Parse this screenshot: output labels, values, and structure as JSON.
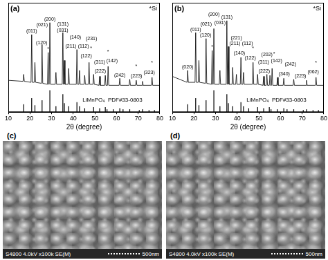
{
  "chart_data": [
    {
      "type": "line",
      "panel": "(a)",
      "xlabel": "2θ (degree)",
      "xlim": [
        10,
        80
      ],
      "xticks": [
        10,
        20,
        30,
        40,
        50,
        60,
        70,
        80
      ],
      "ylim": [
        0,
        110
      ],
      "yticks": [],
      "tick_labels": "x",
      "grid": false,
      "color": "#000000",
      "x": [
        10,
        16.8,
        17.1,
        17.4,
        20.5,
        20.8,
        21.1,
        22.0,
        22.3,
        22.6,
        25.3,
        25.6,
        25.9,
        28.1,
        28.4,
        28.7,
        28.9,
        29.2,
        29.5,
        31.7,
        32.0,
        32.3,
        34.9,
        35.2,
        35.5,
        35.6,
        35.9,
        36.2,
        37.6,
        37.9,
        38.2,
        41.4,
        41.7,
        42.0,
        42.6,
        42.9,
        43.2,
        45.0,
        45.3,
        45.6,
        47.0,
        47.3,
        47.6,
        49.1,
        49.4,
        49.7,
        51.9,
        52.2,
        52.5,
        54.5,
        54.8,
        55.1,
        55.8,
        56.1,
        56.4,
        61.2,
        61.5,
        61.8,
        65.8,
        66.1,
        66.4,
        68.8,
        69.1,
        69.4,
        71.7,
        72.0,
        72.3,
        76.1,
        76.4,
        76.7,
        80
      ],
      "values": [
        32,
        31,
        38,
        31,
        30,
        78,
        30,
        30,
        50,
        30,
        29,
        68,
        29,
        28,
        60,
        28,
        28,
        90,
        28,
        28,
        40,
        28,
        28,
        80,
        28,
        28,
        52,
        28,
        28,
        44,
        28,
        28,
        63,
        28,
        28,
        42,
        28,
        28,
        37,
        28,
        28,
        50,
        28,
        28,
        38,
        28,
        27,
        36,
        27,
        27,
        37,
        27,
        27,
        46,
        27,
        27,
        34,
        27,
        27,
        33,
        27,
        27,
        32,
        27,
        27,
        31,
        27,
        27,
        35,
        27,
        27
      ],
      "annotations": [
        {
          "text": "(011)",
          "x": 20.8
        },
        {
          "text": "(120)",
          "x": 22.3
        },
        {
          "text": "(021)",
          "x": 25.6
        },
        {
          "text": "(200)",
          "x": 29.2
        },
        {
          "text": "(031)",
          "x": 32.0
        },
        {
          "text": "(131)",
          "x": 35.2
        },
        {
          "text": "(211)",
          "x": 35.9
        },
        {
          "text": "(140)",
          "x": 37.9
        },
        {
          "text": "(112)",
          "x": 41.7
        },
        {
          "text": "(122)",
          "x": 42.9
        },
        {
          "text": "(231)",
          "x": 45.3
        },
        {
          "text": "(222)",
          "x": 49.4
        },
        {
          "text": "(311)",
          "x": 52.2
        },
        {
          "text": "(142)",
          "x": 54.8
        },
        {
          "text": "(242)",
          "x": 61.5
        },
        {
          "text": "(223)",
          "x": 66.1
        },
        {
          "text": "(323)",
          "x": 72.0
        }
      ],
      "impurity": {
        "symbol": "*",
        "label": "*Si",
        "x": [
          28.4,
          47.3,
          56.1,
          69.1,
          76.4
        ]
      },
      "reference": {
        "name": "LiMnPO₄  PDF#33-0803",
        "color": "#000000",
        "x": [
          17.1,
          20.8,
          22.3,
          25.6,
          29.2,
          32.0,
          35.2,
          35.9,
          37.9,
          41.7,
          42.9,
          45.3,
          49.4,
          52.2,
          54.8,
          55.6,
          58.5,
          61.5,
          63.0,
          66.1,
          70.5,
          72.0,
          75.0,
          77.5
        ],
        "values": [
          8,
          14,
          7,
          12,
          22,
          6,
          18,
          9,
          6,
          10,
          6,
          4,
          5,
          4,
          5,
          3,
          3,
          4,
          3,
          3,
          2,
          3,
          2,
          2
        ]
      }
    },
    {
      "type": "line",
      "panel": "(b)",
      "xlabel": "2θ (degree)",
      "xlim": [
        10,
        80
      ],
      "xticks": [
        10,
        20,
        30,
        40,
        50,
        60,
        70,
        80
      ],
      "ylim": [
        0,
        110
      ],
      "yticks": [],
      "tick_labels": "x",
      "grid": false,
      "color": "#000000",
      "x": [
        10,
        16.8,
        17.1,
        17.4,
        20.5,
        20.8,
        21.1,
        22.0,
        22.3,
        22.6,
        25.3,
        25.6,
        25.9,
        28.1,
        28.4,
        28.7,
        28.9,
        29.2,
        29.5,
        31.7,
        32.0,
        32.3,
        34.9,
        35.2,
        35.5,
        35.6,
        35.9,
        36.2,
        37.6,
        37.9,
        38.2,
        39.3,
        39.6,
        39.9,
        41.4,
        41.7,
        42.0,
        42.6,
        42.9,
        43.2,
        47.0,
        47.3,
        47.6,
        49.1,
        49.4,
        49.7,
        51.9,
        52.2,
        52.5,
        53.4,
        53.7,
        54.0,
        54.8,
        55.1,
        55.4,
        55.8,
        56.1,
        56.4,
        58.3,
        58.6,
        58.9,
        61.2,
        61.5,
        61.8,
        65.8,
        66.1,
        66.4,
        71.7,
        72.0,
        72.3,
        76.1,
        76.4,
        76.7,
        80
      ],
      "values": [
        36,
        30,
        42,
        30,
        30,
        80,
        30,
        30,
        52,
        30,
        29,
        74,
        29,
        28,
        62,
        28,
        28,
        84,
        28,
        28,
        42,
        28,
        28,
        92,
        28,
        28,
        66,
        28,
        28,
        45,
        28,
        28,
        38,
        28,
        28,
        55,
        28,
        28,
        40,
        28,
        28,
        50,
        28,
        28,
        38,
        28,
        27,
        36,
        27,
        27,
        38,
        27,
        27,
        37,
        27,
        27,
        44,
        27,
        27,
        35,
        27,
        27,
        34,
        27,
        27,
        33,
        27,
        27,
        32,
        27,
        27,
        35,
        27,
        27
      ],
      "annotations": [
        {
          "text": "(020)",
          "x": 17.1
        },
        {
          "text": "(011)",
          "x": 20.8
        },
        {
          "text": "(120)",
          "x": 22.3
        },
        {
          "text": "(021)",
          "x": 25.6
        },
        {
          "text": "(200)",
          "x": 29.2
        },
        {
          "text": "(031)",
          "x": 32.0
        },
        {
          "text": "(131)",
          "x": 35.2
        },
        {
          "text": "(211)",
          "x": 35.9
        },
        {
          "text": "(140)",
          "x": 37.9
        },
        {
          "text": "(221)",
          "x": 39.6
        },
        {
          "text": "(112)",
          "x": 41.7
        },
        {
          "text": "(122)",
          "x": 42.9
        },
        {
          "text": "(222)",
          "x": 49.4
        },
        {
          "text": "(311)",
          "x": 52.2
        },
        {
          "text": "(202)",
          "x": 53.7
        },
        {
          "text": "(142)",
          "x": 55.1
        },
        {
          "text": "(340)",
          "x": 58.6
        },
        {
          "text": "(242)",
          "x": 61.5
        },
        {
          "text": "(223)",
          "x": 66.1
        },
        {
          "text": "(062)",
          "x": 72.0
        }
      ],
      "impurity": {
        "symbol": "*",
        "label": "*Si",
        "x": [
          28.4,
          47.3,
          56.1,
          76.4
        ]
      },
      "reference": {
        "name": "LiMnPO₄  PDF#33-0803",
        "color": "#000000",
        "x": [
          17.1,
          20.8,
          22.3,
          25.6,
          29.2,
          32.0,
          35.2,
          35.9,
          37.9,
          41.7,
          42.9,
          45.3,
          49.4,
          52.2,
          54.8,
          55.6,
          58.5,
          61.5,
          63.0,
          66.1,
          70.5,
          72.0,
          75.0,
          77.5
        ],
        "values": [
          8,
          14,
          7,
          12,
          22,
          6,
          18,
          9,
          6,
          10,
          6,
          4,
          5,
          4,
          5,
          3,
          3,
          4,
          3,
          3,
          2,
          3,
          2,
          2
        ]
      }
    }
  ],
  "images": [
    {
      "panel": "(c)",
      "caption": "S4800 4.0kV x100k SE(M)",
      "scale_bar": "500nm"
    },
    {
      "panel": "(d)",
      "caption": "S4800 4.0kV x100k SE(M)",
      "scale_bar": "500nm"
    }
  ]
}
